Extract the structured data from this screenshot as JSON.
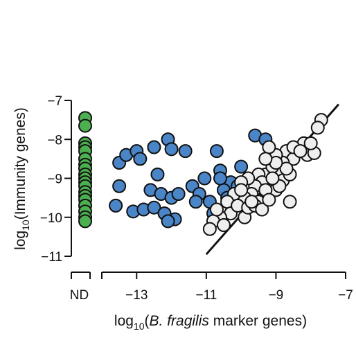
{
  "chart_data": {
    "type": "scatter",
    "title": "",
    "xlabel": {
      "prefix": "log",
      "sub": "10",
      "open": "(",
      "italic": "B. fragilis",
      "rest": " marker genes)"
    },
    "ylabel": {
      "prefix": "log",
      "sub": "10",
      "rest": "(Immunity genes)"
    },
    "xlim": [
      -14,
      -7
    ],
    "ylim": [
      -11,
      -7
    ],
    "xticks": [
      -13,
      -11,
      -9,
      -7
    ],
    "xtick_labels": [
      "−13",
      "−11",
      "−9",
      "−7"
    ],
    "yticks": [
      -7,
      -8,
      -9,
      -10,
      -11
    ],
    "ytick_labels": [
      "−7",
      "−8",
      "−9",
      "−10",
      "−11"
    ],
    "nd_label": "ND",
    "grid": false,
    "reference_line": {
      "x": [
        -11,
        -7.2
      ],
      "y": [
        -10.95,
        -7.1
      ],
      "color": "#111111"
    },
    "series": [
      {
        "color": "#4caf50",
        "points": [
          [
            0,
            -7.45
          ],
          [
            0,
            -7.65
          ],
          [
            0,
            -8.1
          ],
          [
            0,
            -8.2
          ],
          [
            0,
            -8.3
          ],
          [
            0,
            -8.5
          ],
          [
            0,
            -8.65
          ],
          [
            0,
            -8.75
          ],
          [
            0,
            -8.9
          ],
          [
            0,
            -9.0
          ],
          [
            0,
            -9.1
          ],
          [
            0,
            -9.2
          ],
          [
            0,
            -9.35
          ],
          [
            0,
            -9.45
          ],
          [
            0,
            -9.55
          ],
          [
            0,
            -9.7
          ],
          [
            0,
            -9.85
          ],
          [
            0,
            -10.0
          ],
          [
            0,
            -10.1
          ]
        ]
      },
      {
        "color": "#4a85c8",
        "points": [
          [
            -13.5,
            -8.6
          ],
          [
            -13.3,
            -8.4
          ],
          [
            -13.0,
            -8.3
          ],
          [
            -12.9,
            -8.5
          ],
          [
            -12.5,
            -8.2
          ],
          [
            -12.1,
            -8.0
          ],
          [
            -12.0,
            -8.25
          ],
          [
            -12.4,
            -8.9
          ],
          [
            -11.6,
            -8.3
          ],
          [
            -13.5,
            -9.2
          ],
          [
            -12.6,
            -9.3
          ],
          [
            -12.3,
            -9.4
          ],
          [
            -12.0,
            -9.5
          ],
          [
            -11.4,
            -9.2
          ],
          [
            -11.2,
            -9.4
          ],
          [
            -11.3,
            -9.6
          ],
          [
            -13.6,
            -9.7
          ],
          [
            -13.1,
            -9.85
          ],
          [
            -12.8,
            -9.8
          ],
          [
            -12.5,
            -9.75
          ],
          [
            -12.2,
            -9.9
          ],
          [
            -11.9,
            -10.05
          ],
          [
            -11.8,
            -9.4
          ],
          [
            -10.9,
            -9.6
          ],
          [
            -10.7,
            -8.3
          ],
          [
            -10.6,
            -8.8
          ],
          [
            -10.3,
            -9.1
          ],
          [
            -10.5,
            -9.3
          ],
          [
            -10.1,
            -9.2
          ],
          [
            -10.4,
            -9.5
          ],
          [
            -9.6,
            -7.9
          ],
          [
            -9.3,
            -8.0
          ],
          [
            -10.6,
            -9.0
          ],
          [
            -11.05,
            -9.0
          ],
          [
            -12.1,
            -10.1
          ],
          [
            -10.8,
            -9.9
          ],
          [
            -10.0,
            -8.7
          ]
        ]
      },
      {
        "color": "#eeeeee",
        "points": [
          [
            -7.7,
            -7.5
          ],
          [
            -7.8,
            -7.7
          ],
          [
            -8.2,
            -8.1
          ],
          [
            -8.4,
            -8.3
          ],
          [
            -8.1,
            -8.4
          ],
          [
            -7.9,
            -8.35
          ],
          [
            -8.7,
            -8.3
          ],
          [
            -8.5,
            -8.5
          ],
          [
            -8.8,
            -8.6
          ],
          [
            -9.0,
            -8.4
          ],
          [
            -9.2,
            -8.2
          ],
          [
            -8.9,
            -8.8
          ],
          [
            -9.3,
            -8.9
          ],
          [
            -9.1,
            -8.7
          ],
          [
            -9.5,
            -8.9
          ],
          [
            -9.4,
            -9.1
          ],
          [
            -9.6,
            -9.2
          ],
          [
            -9.8,
            -9.0
          ],
          [
            -10.0,
            -9.1
          ],
          [
            -9.7,
            -9.4
          ],
          [
            -9.9,
            -9.5
          ],
          [
            -9.5,
            -9.6
          ],
          [
            -9.2,
            -9.4
          ],
          [
            -9.0,
            -9.3
          ],
          [
            -8.8,
            -9.05
          ],
          [
            -8.6,
            -8.9
          ],
          [
            -8.6,
            -9.6
          ],
          [
            -9.3,
            -9.3
          ],
          [
            -10.2,
            -9.4
          ],
          [
            -10.4,
            -9.6
          ],
          [
            -10.3,
            -9.9
          ],
          [
            -10.1,
            -9.7
          ],
          [
            -10.6,
            -10.0
          ],
          [
            -10.8,
            -10.1
          ],
          [
            -10.9,
            -10.3
          ],
          [
            -10.5,
            -10.2
          ],
          [
            -10.7,
            -9.8
          ],
          [
            -9.9,
            -10.0
          ],
          [
            -9.8,
            -9.75
          ],
          [
            -9.6,
            -9.7
          ],
          [
            -9.4,
            -9.8
          ],
          [
            -9.2,
            -9.55
          ],
          [
            -8.9,
            -9.2
          ],
          [
            -8.7,
            -8.75
          ],
          [
            -8.5,
            -8.2
          ],
          [
            -8.3,
            -8.3
          ],
          [
            -8.0,
            -8.1
          ],
          [
            -9.0,
            -8.6
          ],
          [
            -9.3,
            -8.5
          ],
          [
            -9.1,
            -9.0
          ],
          [
            -10.0,
            -9.3
          ],
          [
            -9.7,
            -9.6
          ]
        ]
      }
    ]
  }
}
